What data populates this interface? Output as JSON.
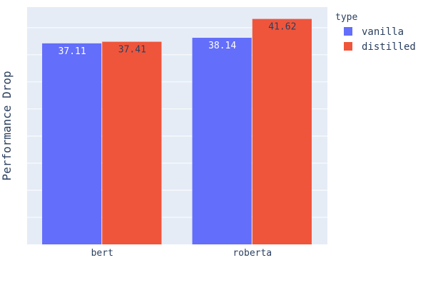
{
  "chart_data": {
    "type": "bar",
    "barmode": "group",
    "categories": [
      "bert",
      "roberta"
    ],
    "series": [
      {
        "name": "vanilla",
        "values": [
          37.11,
          38.14
        ],
        "color": "#636efa",
        "label_color": "#ffffff"
      },
      {
        "name": "distilled",
        "values": [
          37.41,
          41.62
        ],
        "color": "#ef553b",
        "label_color": "#2a3f5f"
      }
    ],
    "ylabel": "Performance Drop",
    "ylim": [
      0,
      43.8
    ],
    "y_tick_labels_shown": false,
    "grid": true,
    "plot_background": "#e5ecf6",
    "legend": {
      "title": "type",
      "placement": "top-right"
    }
  }
}
